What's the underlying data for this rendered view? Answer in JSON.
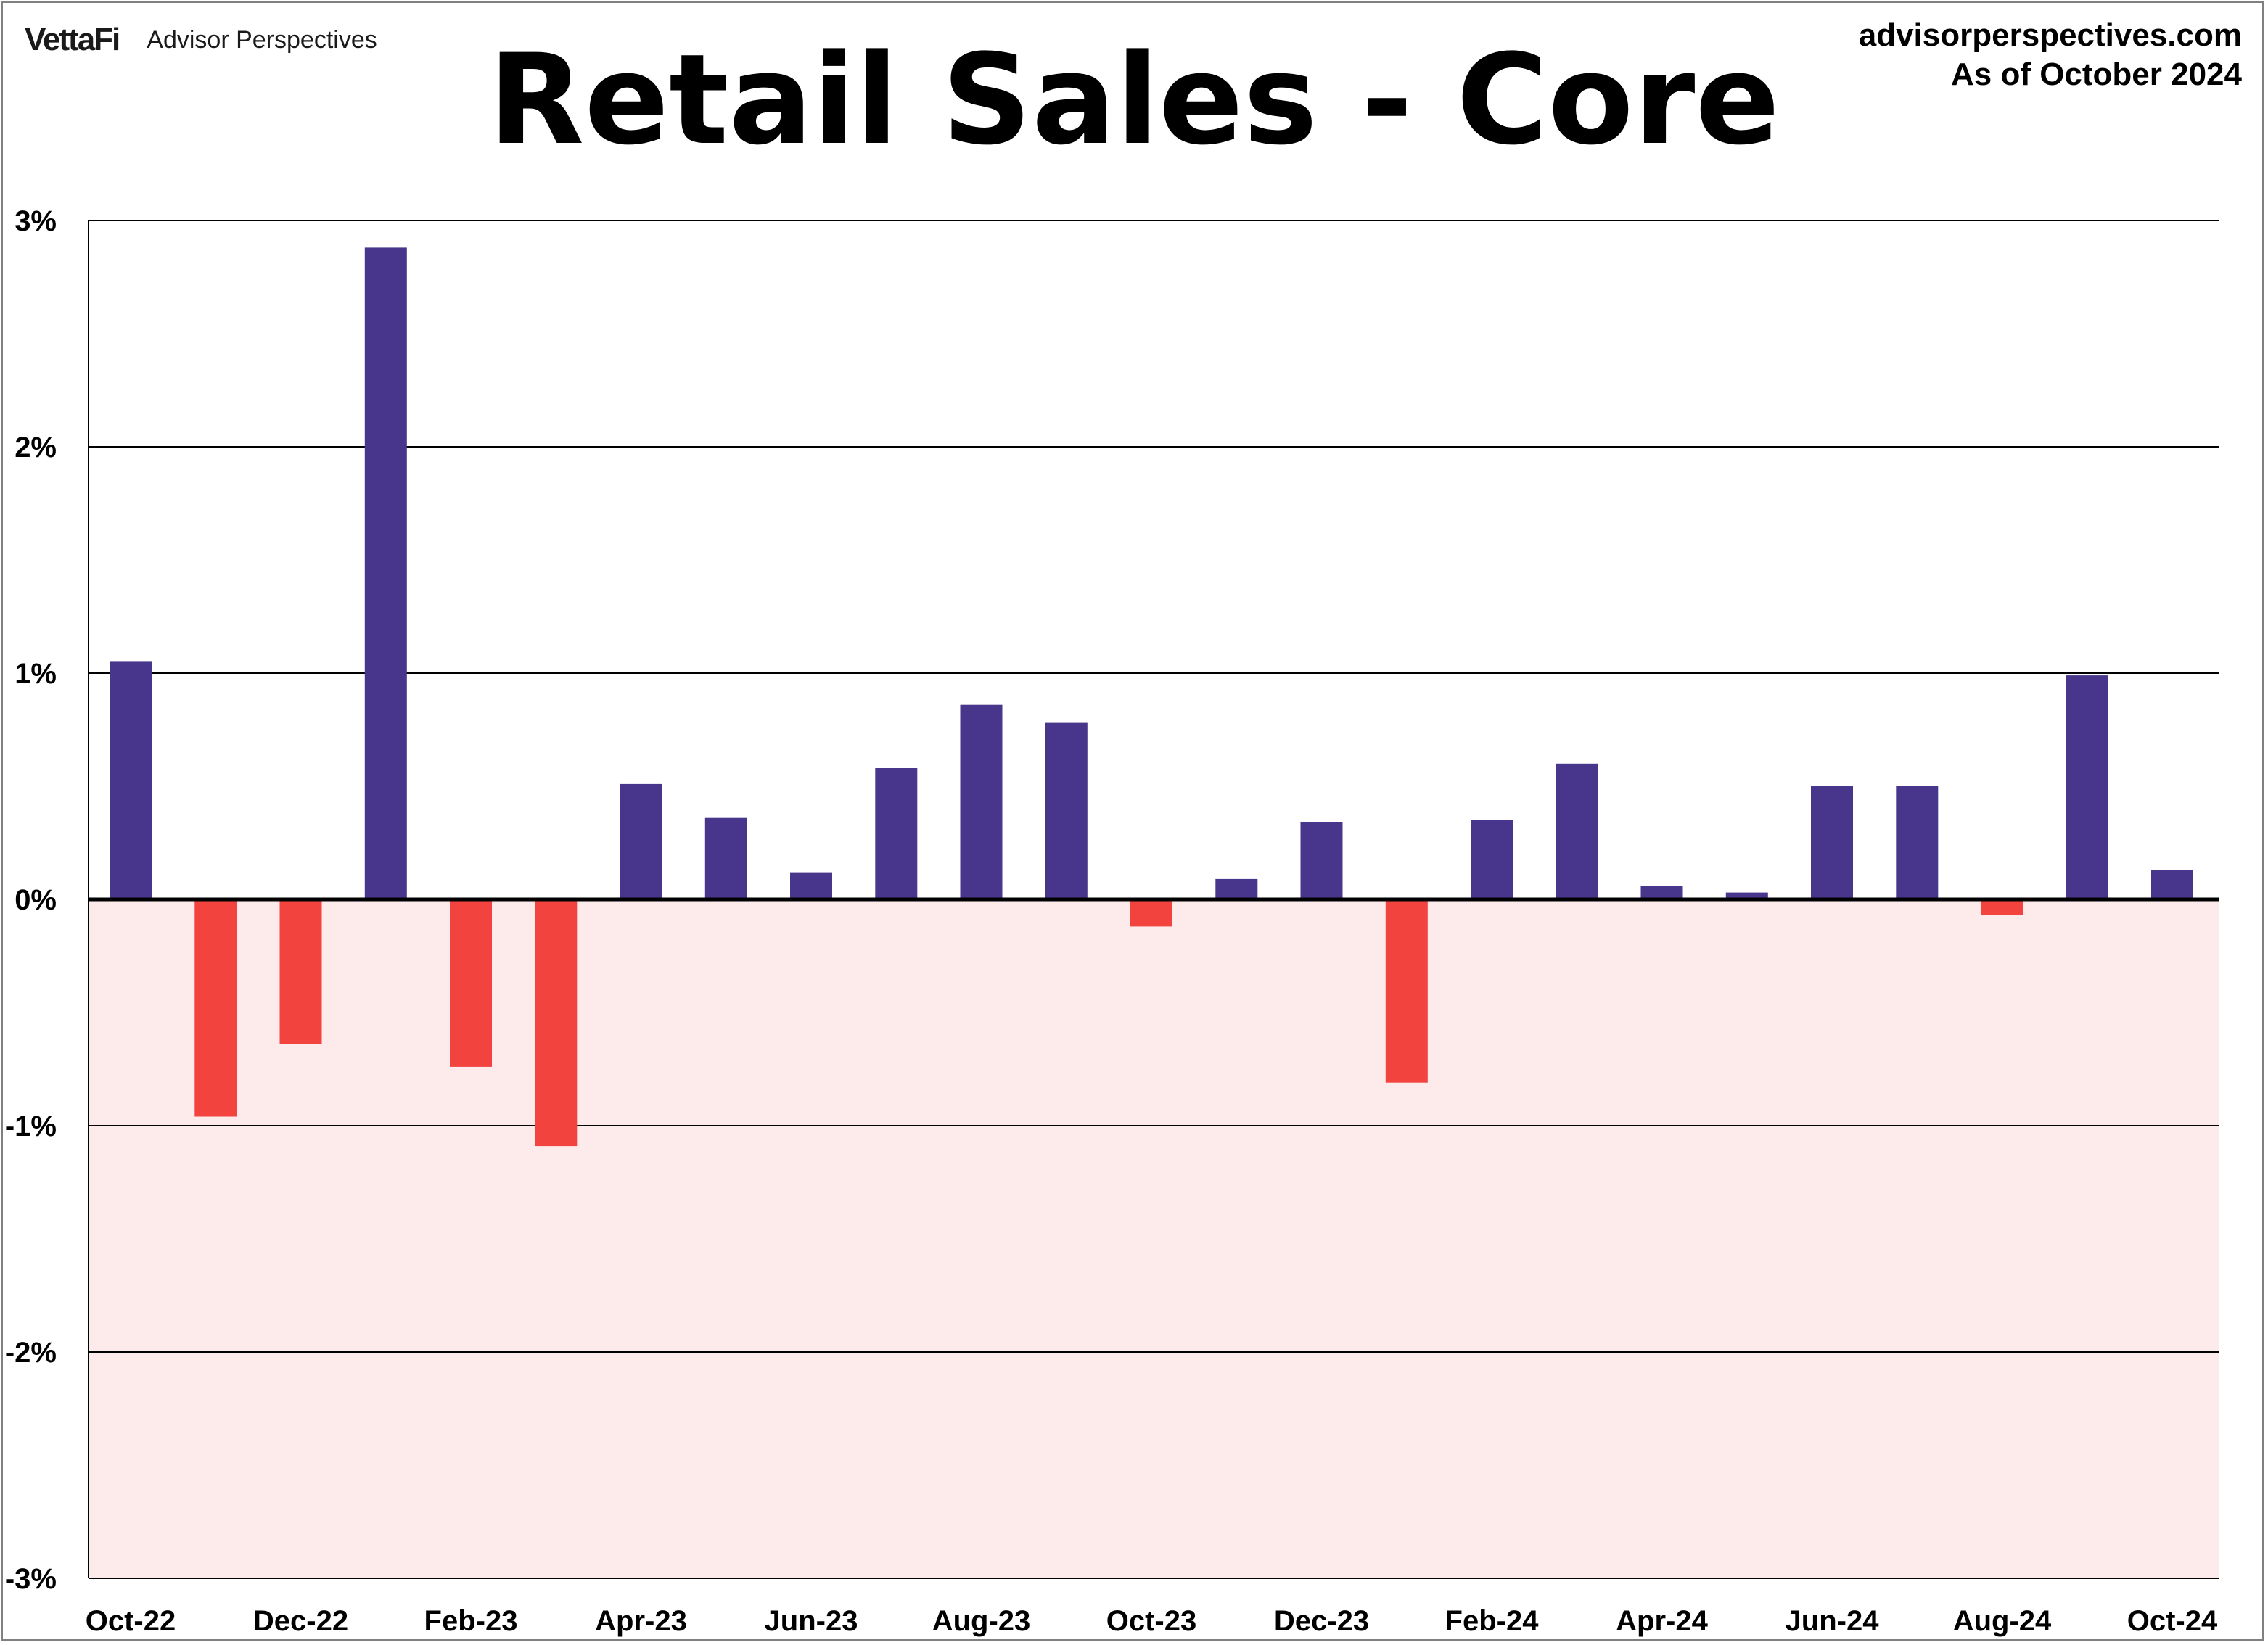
{
  "header": {
    "brand_logo": "VettaFi",
    "brand_name": "Advisor Perspectives",
    "source_site": "advisorperspectives.com",
    "as_of": "As of October 2024"
  },
  "colors": {
    "positive_bar": "#47368B",
    "negative_bar": "#F2433F",
    "negative_region": "#FDEBEB",
    "grid": "#000000"
  },
  "chart_data": {
    "type": "bar",
    "title": "Retail Sales - Core",
    "xlabel": "",
    "ylabel": "",
    "ylim": [
      -3,
      3
    ],
    "y_ticks": [
      3,
      2,
      1,
      0,
      -1,
      -2,
      -3
    ],
    "y_tick_labels": [
      "3%",
      "2%",
      "1%",
      "0%",
      "-1%",
      "-2%",
      "-3%"
    ],
    "grid": true,
    "negative_region_shaded": true,
    "categories": [
      "Oct-22",
      "Nov-22",
      "Dec-22",
      "Jan-23",
      "Feb-23",
      "Mar-23",
      "Apr-23",
      "May-23",
      "Jun-23",
      "Jul-23",
      "Aug-23",
      "Sep-23",
      "Oct-23",
      "Nov-23",
      "Dec-23",
      "Jan-24",
      "Feb-24",
      "Mar-24",
      "Apr-24",
      "May-24",
      "Jun-24",
      "Jul-24",
      "Aug-24",
      "Sep-24",
      "Oct-24"
    ],
    "x_tick_labels": [
      "Oct-22",
      "",
      "Dec-22",
      "",
      "Feb-23",
      "",
      "Apr-23",
      "",
      "Jun-23",
      "",
      "Aug-23",
      "",
      "Oct-23",
      "",
      "Dec-23",
      "",
      "Feb-24",
      "",
      "Apr-24",
      "",
      "Jun-24",
      "",
      "Aug-24",
      "",
      "Oct-24"
    ],
    "values": [
      1.05,
      -0.96,
      -0.64,
      2.88,
      -0.74,
      -1.09,
      0.51,
      0.36,
      0.12,
      0.58,
      0.86,
      0.78,
      -0.12,
      0.09,
      0.34,
      -0.81,
      0.35,
      0.6,
      0.06,
      0.03,
      0.5,
      0.5,
      -0.07,
      0.99,
      0.13
    ]
  }
}
